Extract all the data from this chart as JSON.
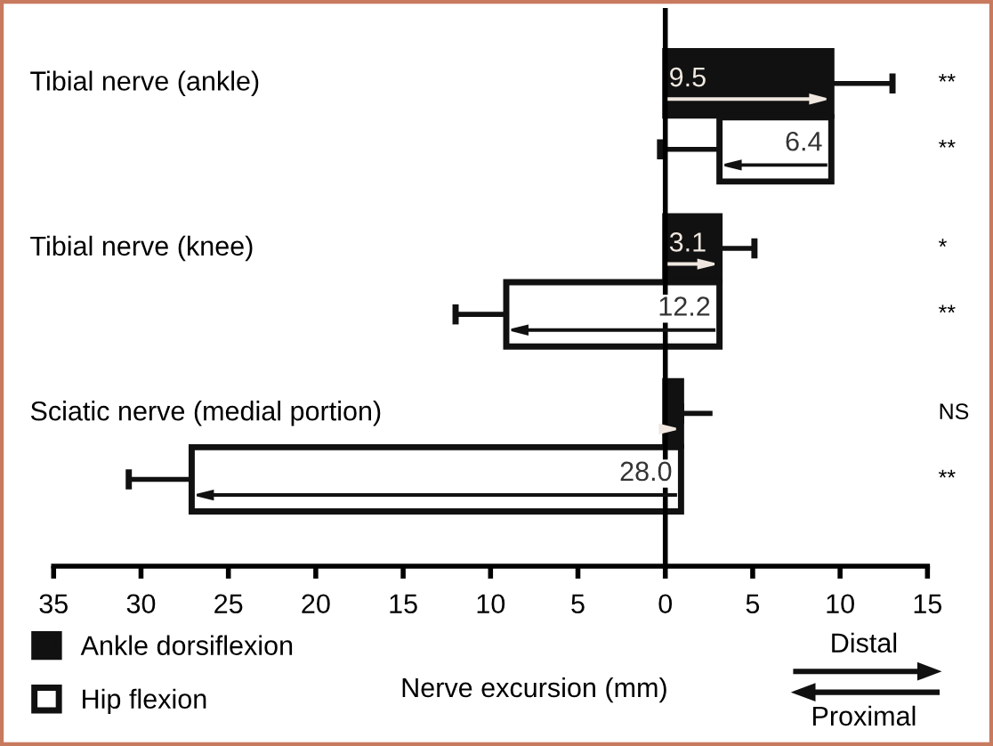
{
  "chart_data": {
    "type": "bar",
    "orientation": "horizontal",
    "xlabel": "Nerve excursion (mm)",
    "categories": [
      "Tibial nerve (ankle)",
      null,
      "Tibial nerve (knee)",
      null,
      "Sciatic nerve (medial portion)",
      null
    ],
    "series": [
      {
        "name": "Ankle dorsiflexion",
        "color": "#111111",
        "values": [
          9.5,
          null,
          3.1,
          null,
          0.9,
          null
        ],
        "base": [
          0,
          null,
          0,
          null,
          0,
          null
        ],
        "errors": [
          [
            9.5,
            13.0
          ],
          null,
          [
            3.1,
            5.1
          ],
          null,
          [
            0.9,
            2.7
          ],
          null
        ],
        "value_labels": [
          "9.5",
          null,
          "3.1",
          null,
          null,
          null
        ]
      },
      {
        "name": "Hip flexion",
        "color": "#ffffff",
        "values": [
          null,
          6.4,
          null,
          12.2,
          null,
          28.0
        ],
        "base": [
          null,
          3.1,
          null,
          -9.1,
          null,
          -27.1
        ],
        "errors": [
          null,
          [
            -0.3,
            3.1
          ],
          null,
          [
            -12.0,
            -9.1
          ],
          null,
          [
            -30.7,
            -27.1
          ]
        ],
        "value_labels": [
          null,
          "6.4",
          null,
          "12.2",
          null,
          "28.0"
        ]
      }
    ],
    "xlim": [
      -35,
      15
    ],
    "xticks": [
      {
        "value": -35,
        "label": "35"
      },
      {
        "value": -30,
        "label": "30"
      },
      {
        "value": -25,
        "label": "25"
      },
      {
        "value": -20,
        "label": "20"
      },
      {
        "value": -15,
        "label": "15"
      },
      {
        "value": -10,
        "label": "10"
      },
      {
        "value": -5,
        "label": "5"
      },
      0,
      5,
      10,
      15
    ],
    "annotations": [
      "**",
      "**",
      "*",
      "**",
      "NS",
      "**",
      "Distal",
      "Proximal"
    ],
    "legend": "bottom left"
  }
}
